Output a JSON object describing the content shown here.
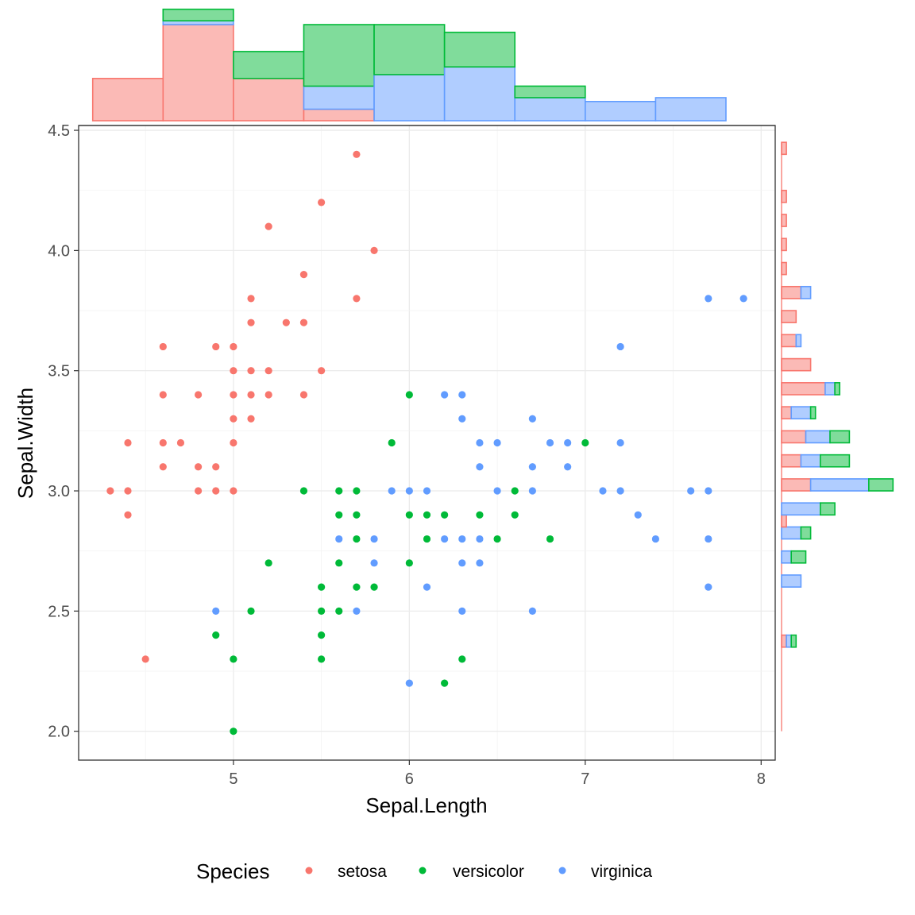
{
  "chart_data": {
    "type": "scatter",
    "xlabel": "Sepal.Length",
    "ylabel": "Sepal.Width",
    "xlim": [
      4.12,
      8.08
    ],
    "ylim": [
      1.88,
      4.52
    ],
    "x_ticks": [
      5,
      6,
      7,
      8
    ],
    "y_ticks": [
      "2.0",
      "2.5",
      "3.0",
      "3.5",
      "4.0",
      "4.5"
    ],
    "grid": true,
    "legend": {
      "title": "Species",
      "placement": "bottom",
      "entries": [
        "setosa",
        "versicolor",
        "virginica"
      ]
    },
    "colors": {
      "setosa": "#F8766D",
      "versicolor": "#00BA38",
      "virginica": "#619CFF"
    },
    "fill_colors": {
      "setosa": "#FBBAB6",
      "versicolor": "#80DC9B",
      "virginica": "#B0CDFF"
    },
    "series": [
      {
        "name": "setosa",
        "points": [
          [
            5.7,
            4.4
          ],
          [
            5.5,
            4.2
          ],
          [
            5.2,
            4.1
          ],
          [
            5.8,
            4.0
          ],
          [
            5.4,
            3.9
          ],
          [
            5.1,
            3.8
          ],
          [
            5.7,
            3.8
          ],
          [
            5.1,
            3.7
          ],
          [
            5.3,
            3.7
          ],
          [
            5.4,
            3.7
          ],
          [
            4.6,
            3.6
          ],
          [
            4.9,
            3.6
          ],
          [
            5.0,
            3.6
          ],
          [
            5.0,
            3.5
          ],
          [
            5.1,
            3.5
          ],
          [
            5.2,
            3.5
          ],
          [
            5.5,
            3.5
          ],
          [
            4.6,
            3.4
          ],
          [
            4.8,
            3.4
          ],
          [
            5.0,
            3.4
          ],
          [
            5.1,
            3.4
          ],
          [
            5.2,
            3.4
          ],
          [
            5.4,
            3.4
          ],
          [
            5.0,
            3.3
          ],
          [
            5.1,
            3.3
          ],
          [
            4.4,
            3.2
          ],
          [
            4.6,
            3.2
          ],
          [
            4.7,
            3.2
          ],
          [
            5.0,
            3.2
          ],
          [
            4.6,
            3.1
          ],
          [
            4.8,
            3.1
          ],
          [
            4.9,
            3.1
          ],
          [
            4.3,
            3.0
          ],
          [
            4.4,
            3.0
          ],
          [
            4.8,
            3.0
          ],
          [
            4.9,
            3.0
          ],
          [
            5.0,
            3.0
          ],
          [
            4.4,
            2.9
          ],
          [
            4.5,
            2.3
          ]
        ]
      },
      {
        "name": "versicolor",
        "points": [
          [
            6.0,
            3.4
          ],
          [
            5.9,
            3.2
          ],
          [
            7.0,
            3.2
          ],
          [
            5.4,
            3.0
          ],
          [
            5.6,
            3.0
          ],
          [
            5.7,
            3.0
          ],
          [
            6.6,
            3.0
          ],
          [
            5.6,
            2.9
          ],
          [
            5.7,
            2.9
          ],
          [
            6.0,
            2.9
          ],
          [
            6.1,
            2.9
          ],
          [
            6.2,
            2.9
          ],
          [
            6.4,
            2.9
          ],
          [
            6.6,
            2.9
          ],
          [
            5.7,
            2.8
          ],
          [
            6.1,
            2.8
          ],
          [
            6.5,
            2.8
          ],
          [
            6.8,
            2.8
          ],
          [
            5.2,
            2.7
          ],
          [
            5.6,
            2.7
          ],
          [
            6.0,
            2.7
          ],
          [
            5.5,
            2.6
          ],
          [
            5.7,
            2.6
          ],
          [
            5.8,
            2.6
          ],
          [
            5.1,
            2.5
          ],
          [
            5.5,
            2.5
          ],
          [
            5.6,
            2.5
          ],
          [
            4.9,
            2.4
          ],
          [
            5.5,
            2.4
          ],
          [
            5.0,
            2.3
          ],
          [
            5.5,
            2.3
          ],
          [
            6.3,
            2.3
          ],
          [
            6.2,
            2.2
          ],
          [
            5.0,
            2.0
          ]
        ]
      },
      {
        "name": "virginica",
        "points": [
          [
            7.7,
            3.8
          ],
          [
            7.9,
            3.8
          ],
          [
            7.2,
            3.6
          ],
          [
            6.2,
            3.4
          ],
          [
            6.3,
            3.4
          ],
          [
            6.3,
            3.3
          ],
          [
            6.7,
            3.3
          ],
          [
            6.4,
            3.2
          ],
          [
            6.5,
            3.2
          ],
          [
            6.8,
            3.2
          ],
          [
            6.9,
            3.2
          ],
          [
            7.2,
            3.2
          ],
          [
            6.4,
            3.1
          ],
          [
            6.7,
            3.1
          ],
          [
            6.9,
            3.1
          ],
          [
            5.9,
            3.0
          ],
          [
            6.0,
            3.0
          ],
          [
            6.1,
            3.0
          ],
          [
            6.5,
            3.0
          ],
          [
            6.7,
            3.0
          ],
          [
            7.1,
            3.0
          ],
          [
            7.2,
            3.0
          ],
          [
            7.6,
            3.0
          ],
          [
            7.7,
            3.0
          ],
          [
            7.3,
            2.9
          ],
          [
            5.6,
            2.8
          ],
          [
            5.8,
            2.8
          ],
          [
            6.2,
            2.8
          ],
          [
            6.3,
            2.8
          ],
          [
            6.4,
            2.8
          ],
          [
            7.4,
            2.8
          ],
          [
            7.7,
            2.8
          ],
          [
            5.8,
            2.7
          ],
          [
            6.3,
            2.7
          ],
          [
            6.4,
            2.7
          ],
          [
            6.1,
            2.6
          ],
          [
            7.7,
            2.6
          ],
          [
            4.9,
            2.5
          ],
          [
            5.7,
            2.5
          ],
          [
            6.3,
            2.5
          ],
          [
            6.7,
            2.5
          ],
          [
            6.0,
            2.2
          ]
        ]
      }
    ],
    "top_histogram": {
      "variable": "Sepal.Length",
      "bin_edges": [
        4.2,
        4.6,
        5.0,
        5.4,
        5.8,
        6.2,
        6.6,
        7.0,
        7.4,
        7.8
      ],
      "counts": {
        "setosa": [
          11,
          25,
          11,
          3,
          0,
          0,
          0,
          0,
          0
        ],
        "virginica": [
          0,
          1,
          0,
          6,
          12,
          14,
          6,
          5,
          6
        ],
        "versicolor": [
          0,
          3,
          7,
          16,
          13,
          9,
          3,
          0,
          0
        ]
      }
    },
    "right_histogram": {
      "variable": "Sepal.Width",
      "bin_edges": [
        2.0,
        2.05,
        2.1,
        2.15,
        2.2,
        2.25,
        2.3,
        2.35,
        2.4,
        2.45,
        2.5,
        2.55,
        2.6,
        2.65,
        2.7,
        2.75,
        2.8,
        2.85,
        2.9,
        2.95,
        3.0,
        3.05,
        3.1,
        3.15,
        3.2,
        3.25,
        3.3,
        3.35,
        3.4,
        3.45,
        3.5,
        3.55,
        3.6,
        3.65,
        3.7,
        3.75,
        3.8,
        3.85,
        3.9,
        3.95,
        4.0,
        4.05,
        4.1,
        4.15,
        4.2,
        4.25,
        4.3,
        4.35,
        4.4,
        4.45
      ],
      "counts": {
        "setosa": [
          0,
          0,
          0,
          0,
          0,
          0,
          0,
          1,
          0,
          0,
          0,
          0,
          0,
          0,
          0,
          0,
          0,
          1,
          0,
          0,
          6,
          0,
          4,
          0,
          5,
          0,
          2,
          0,
          9,
          0,
          6,
          0,
          3,
          0,
          3,
          0,
          4,
          0,
          1,
          0,
          1,
          0,
          1,
          0,
          1,
          0,
          0,
          0,
          1
        ],
        "virginica": [
          0,
          0,
          0,
          0,
          0,
          0,
          0,
          1,
          0,
          0,
          0,
          0,
          4,
          0,
          2,
          0,
          4,
          0,
          8,
          0,
          12,
          0,
          4,
          0,
          5,
          0,
          4,
          0,
          2,
          0,
          0,
          0,
          1,
          0,
          0,
          0,
          2,
          0,
          0,
          0,
          0,
          0,
          0,
          0,
          0,
          0,
          0,
          0,
          0
        ],
        "versicolor": [
          0,
          0,
          0,
          0,
          0,
          0,
          0,
          1,
          0,
          0,
          0,
          0,
          0,
          0,
          3,
          0,
          2,
          0,
          3,
          0,
          5,
          0,
          6,
          0,
          4,
          0,
          1,
          0,
          1,
          0,
          0,
          0,
          0,
          0,
          0,
          0,
          0,
          0,
          0,
          0,
          0,
          0,
          0,
          0,
          0,
          0,
          0,
          0,
          0
        ]
      }
    }
  }
}
